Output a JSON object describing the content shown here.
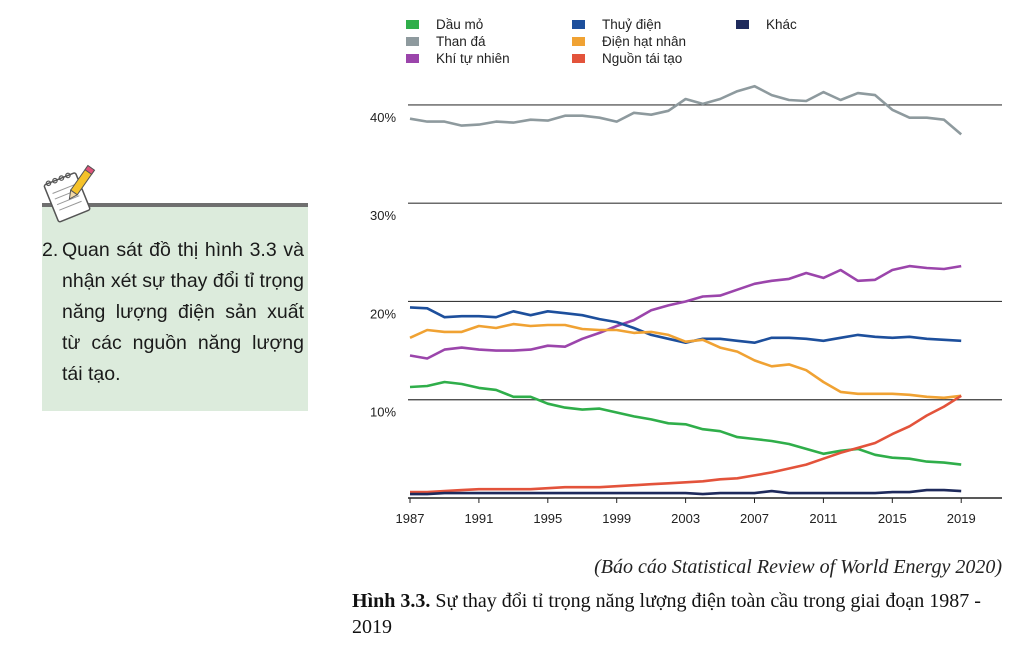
{
  "note": {
    "number": "2.",
    "text": "Quan sát đồ thị hình 3.3 và nhận xét sự thay đổi tỉ trọng năng lượng điện sản xuất từ các nguồn năng lượng tái tạo."
  },
  "source": "(Báo cáo Statistical Review of World Energy 2020)",
  "caption": {
    "label": "Hình 3.3.",
    "text": "Sự thay đổi tỉ trọng năng lượng điện toàn cầu trong giai đoạn 1987 - 2019"
  },
  "chart_data": {
    "type": "line",
    "title": "",
    "xlabel": "",
    "ylabel": "",
    "x": [
      1987,
      1988,
      1989,
      1990,
      1991,
      1992,
      1993,
      1994,
      1995,
      1996,
      1997,
      1998,
      1999,
      2000,
      2001,
      2002,
      2003,
      2004,
      2005,
      2006,
      2007,
      2008,
      2009,
      2010,
      2011,
      2012,
      2013,
      2014,
      2015,
      2016,
      2017,
      2018,
      2019
    ],
    "xticks": [
      "1987",
      "1991",
      "1995",
      "1999",
      "2003",
      "2007",
      "2011",
      "2015",
      "2019"
    ],
    "xtick_years": [
      1987,
      1991,
      1995,
      1999,
      2003,
      2007,
      2011,
      2015,
      2019
    ],
    "yticks": [
      10,
      20,
      30,
      40
    ],
    "ytick_labels": [
      "10%",
      "20%",
      "30%",
      "40%"
    ],
    "ylim": [
      0,
      42
    ],
    "legend_position": "top",
    "series": [
      {
        "name": "Dầu mỏ",
        "color": "#2fae4a",
        "values": [
          11.3,
          11.4,
          11.8,
          11.6,
          11.2,
          11.0,
          10.3,
          10.3,
          9.6,
          9.2,
          9.0,
          9.1,
          8.7,
          8.3,
          8.0,
          7.6,
          7.5,
          7.0,
          6.8,
          6.2,
          6.0,
          5.8,
          5.5,
          5.0,
          4.5,
          4.8,
          5.0,
          4.4,
          4.1,
          4.0,
          3.7,
          3.6,
          3.4
        ]
      },
      {
        "name": "Than đá",
        "color": "#8e9a9e",
        "values": [
          38.6,
          38.3,
          38.3,
          37.9,
          38.0,
          38.3,
          38.2,
          38.5,
          38.4,
          38.9,
          38.9,
          38.7,
          38.3,
          39.2,
          39.0,
          39.4,
          40.6,
          40.1,
          40.6,
          41.4,
          41.9,
          41.0,
          40.5,
          40.4,
          41.3,
          40.5,
          41.2,
          41.0,
          39.5,
          38.7,
          38.7,
          38.5,
          37.0
        ]
      },
      {
        "name": "Khí tự nhiên",
        "color": "#9b45ab",
        "values": [
          14.5,
          14.2,
          15.1,
          15.3,
          15.1,
          15.0,
          15.0,
          15.1,
          15.5,
          15.4,
          16.2,
          16.8,
          17.5,
          18.1,
          19.1,
          19.6,
          20.0,
          20.5,
          20.6,
          21.2,
          21.8,
          22.1,
          22.3,
          22.9,
          22.4,
          23.2,
          22.1,
          22.2,
          23.2,
          23.6,
          23.4,
          23.3,
          23.6
        ]
      },
      {
        "name": "Thuỷ điện",
        "color": "#1d4f9c",
        "values": [
          19.4,
          19.3,
          18.4,
          18.5,
          18.5,
          18.4,
          19.0,
          18.6,
          19.0,
          18.8,
          18.6,
          18.2,
          17.9,
          17.3,
          16.6,
          16.2,
          15.8,
          16.2,
          16.2,
          16.0,
          15.8,
          16.3,
          16.3,
          16.2,
          16.0,
          16.3,
          16.6,
          16.4,
          16.3,
          16.4,
          16.2,
          16.1,
          16.0
        ]
      },
      {
        "name": "Điện hạt nhân",
        "color": "#f0a233",
        "values": [
          16.3,
          17.1,
          16.9,
          16.9,
          17.5,
          17.3,
          17.7,
          17.5,
          17.6,
          17.6,
          17.2,
          17.1,
          17.1,
          16.8,
          16.9,
          16.6,
          15.9,
          16.1,
          15.3,
          14.9,
          14.0,
          13.4,
          13.6,
          13.0,
          11.8,
          10.8,
          10.6,
          10.6,
          10.6,
          10.5,
          10.3,
          10.2,
          10.4
        ]
      },
      {
        "name": "Nguồn tái tạo",
        "color": "#e3533b",
        "values": [
          0.6,
          0.6,
          0.7,
          0.8,
          0.9,
          0.9,
          0.9,
          0.9,
          1.0,
          1.1,
          1.1,
          1.1,
          1.2,
          1.3,
          1.4,
          1.5,
          1.6,
          1.7,
          1.9,
          2.0,
          2.3,
          2.6,
          3.0,
          3.4,
          4.0,
          4.6,
          5.1,
          5.6,
          6.5,
          7.3,
          8.4,
          9.3,
          10.4
        ]
      },
      {
        "name": "Khác",
        "color": "#1e2a5c",
        "values": [
          0.4,
          0.4,
          0.5,
          0.5,
          0.5,
          0.5,
          0.5,
          0.5,
          0.5,
          0.5,
          0.5,
          0.5,
          0.5,
          0.5,
          0.5,
          0.5,
          0.5,
          0.4,
          0.5,
          0.5,
          0.5,
          0.7,
          0.5,
          0.5,
          0.5,
          0.5,
          0.5,
          0.5,
          0.6,
          0.6,
          0.8,
          0.8,
          0.7
        ]
      }
    ]
  }
}
